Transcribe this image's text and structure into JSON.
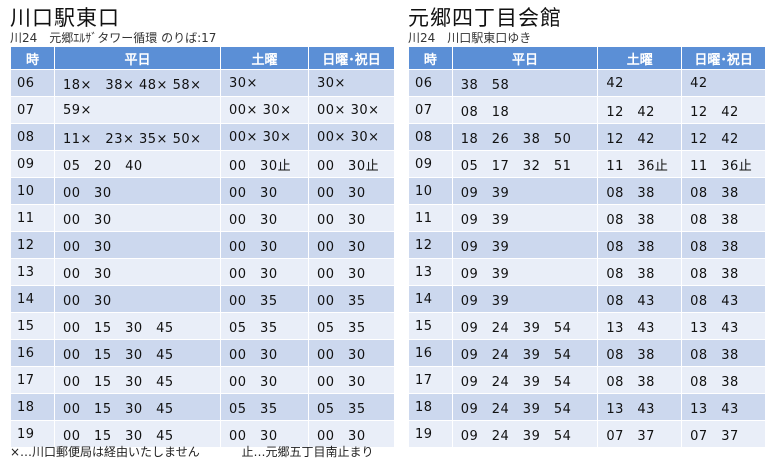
{
  "left": {
    "title": "川口駅東口",
    "subtitle": "川24　元郷ｴﾙｻﾞタワー循環 のりば:17",
    "headers": [
      "時",
      "平日",
      "土曜",
      "日曜･祝日"
    ],
    "rows": [
      {
        "hour": "06",
        "weekday": "18×　38×  48×  58×",
        "saturday": "30×",
        "holiday": "30×"
      },
      {
        "hour": "07",
        "weekday": "59×",
        "saturday": "00×  30×",
        "holiday": "00×  30×"
      },
      {
        "hour": "08",
        "weekday": "11×　23×  35×  50×",
        "saturday": "00×  30×",
        "holiday": "00×  30×"
      },
      {
        "hour": "09",
        "weekday": "05　20　40",
        "saturday": "00　30止",
        "holiday": "00　30止"
      },
      {
        "hour": "10",
        "weekday": "00　30",
        "saturday": "00　30",
        "holiday": "00　30"
      },
      {
        "hour": "11",
        "weekday": "00　30",
        "saturday": "00　30",
        "holiday": "00　30"
      },
      {
        "hour": "12",
        "weekday": "00　30",
        "saturday": "00　30",
        "holiday": "00　30"
      },
      {
        "hour": "13",
        "weekday": "00　30",
        "saturday": "00　30",
        "holiday": "00　30"
      },
      {
        "hour": "14",
        "weekday": "00　30",
        "saturday": "00　35",
        "holiday": "00　35"
      },
      {
        "hour": "15",
        "weekday": "00　15　30　45",
        "saturday": "05　35",
        "holiday": "05　35"
      },
      {
        "hour": "16",
        "weekday": "00　15　30　45",
        "saturday": "00　30",
        "holiday": "00　30"
      },
      {
        "hour": "17",
        "weekday": "00　15　30　45",
        "saturday": "00　30",
        "holiday": "00　30"
      },
      {
        "hour": "18",
        "weekday": "00　15　30　45",
        "saturday": "05　35",
        "holiday": "05　35"
      },
      {
        "hour": "19",
        "weekday": "00　15　30　45",
        "saturday": "00　30",
        "holiday": "00　30"
      }
    ]
  },
  "right": {
    "title": "元郷四丁目会館",
    "subtitle": "川24　川口駅東口ゆき",
    "headers": [
      "時",
      "平日",
      "土曜",
      "日曜･祝日"
    ],
    "rows": [
      {
        "hour": "06",
        "weekday": "38　58",
        "saturday": "42",
        "holiday": "42"
      },
      {
        "hour": "07",
        "weekday": "08　18",
        "saturday": "12　42",
        "holiday": "12　42"
      },
      {
        "hour": "08",
        "weekday": "18　26　38　50",
        "saturday": "12　42",
        "holiday": "12　42"
      },
      {
        "hour": "09",
        "weekday": "05　17　32　51",
        "saturday": "11　36止",
        "holiday": "11　36止"
      },
      {
        "hour": "10",
        "weekday": "09　39",
        "saturday": "08　38",
        "holiday": "08　38"
      },
      {
        "hour": "11",
        "weekday": "09　39",
        "saturday": "08　38",
        "holiday": "08　38"
      },
      {
        "hour": "12",
        "weekday": "09　39",
        "saturday": "08　38",
        "holiday": "08　38"
      },
      {
        "hour": "13",
        "weekday": "09　39",
        "saturday": "08　38",
        "holiday": "08　38"
      },
      {
        "hour": "14",
        "weekday": "09　39",
        "saturday": "08　43",
        "holiday": "08　43"
      },
      {
        "hour": "15",
        "weekday": "09　24　39　54",
        "saturday": "13　43",
        "holiday": "13　43"
      },
      {
        "hour": "16",
        "weekday": "09　24　39　54",
        "saturday": "08　38",
        "holiday": "08　38"
      },
      {
        "hour": "17",
        "weekday": "09　24　39　54",
        "saturday": "08　38",
        "holiday": "08　38"
      },
      {
        "hour": "18",
        "weekday": "09　24　39　54",
        "saturday": "13　43",
        "holiday": "13　43"
      },
      {
        "hour": "19",
        "weekday": "09　24　39　54",
        "saturday": "07　37",
        "holiday": "07　37"
      }
    ]
  },
  "footer": {
    "note1": "×…川口郵便局は経由いたしません",
    "note2": "止…元郷五丁目南止まり"
  }
}
